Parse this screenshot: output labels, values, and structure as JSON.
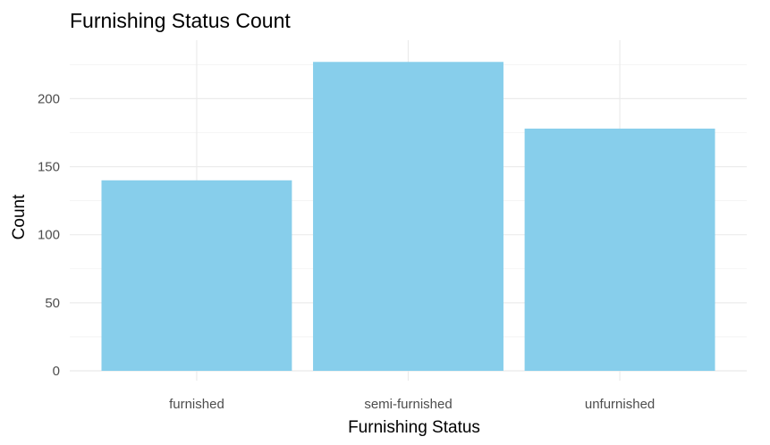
{
  "chart_data": {
    "type": "bar",
    "title": "Furnishing Status Count",
    "xlabel": "Furnishing Status",
    "ylabel": "Count",
    "categories": [
      "furnished",
      "semi-furnished",
      "unfurnished"
    ],
    "values": [
      140,
      227,
      178
    ],
    "ylim": [
      0,
      238.35
    ],
    "yticks": [
      0,
      50,
      100,
      150,
      200
    ],
    "bar_color": "#87ceeb",
    "grid": true,
    "legend": "none"
  }
}
